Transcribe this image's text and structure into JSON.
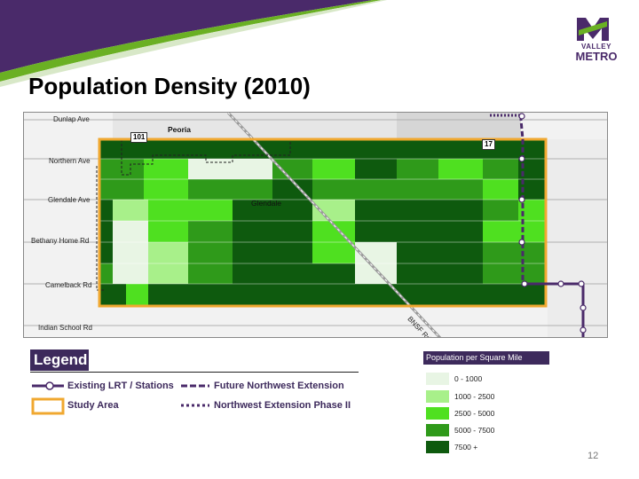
{
  "page": {
    "title": "Population Density (2010)",
    "page_number": "12"
  },
  "logo": {
    "line1": "VALLEY",
    "line2": "METRO"
  },
  "colors": {
    "purple": "#4a2a6a",
    "green_accent": "#6ab023",
    "study_area": "#f0a830",
    "density_0_1000": "#e8f5e4",
    "density_1000_2500": "#a8f08a",
    "density_2500_5000": "#4fe020",
    "density_5000_7500": "#2f9a1a",
    "density_7500_plus": "#0e5a0e"
  },
  "map": {
    "streets": [
      "Dunlap Ave",
      "Northern Ave",
      "Glendale Ave",
      "Bethany Home Rd",
      "Camelback Rd",
      "Indian School Rd"
    ],
    "places": [
      "Peoria",
      "Glendale"
    ],
    "railroad": "BNSF Rd",
    "freeways": [
      "101",
      "17"
    ]
  },
  "legend": {
    "title": "Legend",
    "items": [
      {
        "label": "Existing LRT / Stations",
        "icon": "lrt-existing-icon"
      },
      {
        "label": "Future Northwest Extension",
        "icon": "future-extension-icon"
      },
      {
        "label": "Study Area",
        "icon": "study-area-icon"
      },
      {
        "label": "Northwest Extension Phase II",
        "icon": "phase2-icon"
      }
    ]
  },
  "density_legend": {
    "title": "Population per Square Mile",
    "classes": [
      {
        "label": "0 - 1000",
        "color": "#e8f5e4"
      },
      {
        "label": "1000 - 2500",
        "color": "#a8f08a"
      },
      {
        "label": "2500 - 5000",
        "color": "#4fe020"
      },
      {
        "label": "5000 - 7500",
        "color": "#2f9a1a"
      },
      {
        "label": "7500 +",
        "color": "#0e5a0e"
      }
    ]
  }
}
